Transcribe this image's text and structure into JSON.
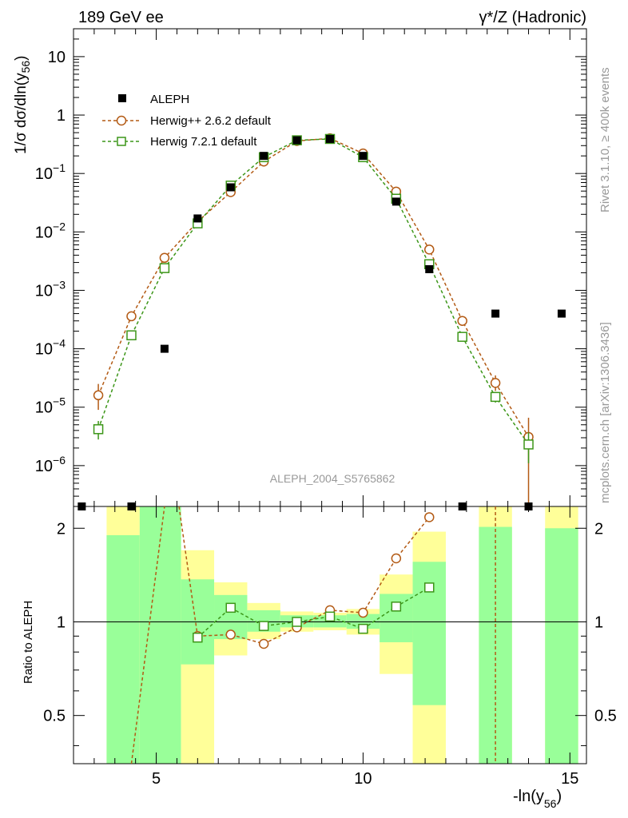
{
  "header": {
    "left_title": "189 GeV ee",
    "right_title": "γ*/Z (Hadronic)"
  },
  "side_labels": {
    "rivet": "Rivet 3.1.10, ≥ 400k events",
    "mcplots": "mcplots.cern.ch [arXiv:1306.3436]"
  },
  "watermark": "ALEPH_2004_S5765862",
  "colors": {
    "herwig262": "#b35a14",
    "herwig721": "#3c9618",
    "band_inner": "#99ff99",
    "band_outer": "#ffff99",
    "data": "#000000"
  },
  "chart_data": [
    {
      "type": "scatter",
      "panel": "main",
      "ylabel": "1/σ  dσ/dln(y56)",
      "yscale": "log",
      "ylim": [
        2e-07,
        30
      ],
      "xlim": [
        3,
        15.4
      ],
      "y_ticks": [
        "10",
        "1",
        "10^-1",
        "10^-2",
        "10^-3",
        "10^-4",
        "10^-5",
        "10^-6"
      ],
      "legend": [
        "ALEPH",
        "Herwig++ 2.6.2 default",
        "Herwig 7.2.1 default"
      ],
      "legend_position": "top-left",
      "series": [
        {
          "name": "ALEPH",
          "marker": "filled-square",
          "x": [
            3.2,
            4.4,
            5.2,
            6.0,
            6.8,
            7.6,
            8.4,
            9.2,
            10.0,
            10.8,
            11.6,
            12.4,
            13.2,
            14.0,
            14.8
          ],
          "y": [
            2e-07,
            2e-07,
            0.0001,
            0.017,
            0.058,
            0.2,
            0.37,
            0.39,
            0.2,
            0.033,
            0.0023,
            2e-07,
            0.0004,
            2e-07,
            0.0004
          ],
          "note_below_range": [
            true,
            true,
            false,
            false,
            false,
            false,
            false,
            false,
            false,
            false,
            false,
            true,
            false,
            true,
            false
          ]
        },
        {
          "name": "Herwig++ 2.6.2 default",
          "marker": "open-circle",
          "x": [
            3.6,
            4.4,
            5.2,
            6.0,
            6.8,
            7.6,
            8.4,
            9.2,
            10.0,
            10.8,
            11.6,
            12.4,
            13.2,
            14.0
          ],
          "y": [
            1.6e-05,
            0.00036,
            0.0036,
            0.015,
            0.048,
            0.16,
            0.36,
            0.4,
            0.22,
            0.049,
            0.005,
            0.0003,
            2.6e-05,
            3.1e-06
          ],
          "yerr_low": [
            7e-06,
            0,
            0,
            0,
            0,
            0,
            0,
            0,
            0,
            0,
            0,
            0,
            7e-06,
            2.9e-06
          ],
          "yerr_high": [
            9e-06,
            0,
            0,
            0,
            0,
            0,
            0,
            0,
            0,
            0,
            0,
            0,
            9e-06,
            3.5e-06
          ]
        },
        {
          "name": "Herwig 7.2.1 default",
          "marker": "open-square",
          "x": [
            3.6,
            4.4,
            5.2,
            6.0,
            6.8,
            7.6,
            8.4,
            9.2,
            10.0,
            10.8,
            11.6,
            12.4,
            13.2,
            14.0
          ],
          "y": [
            4.2e-06,
            0.00017,
            0.0024,
            0.014,
            0.062,
            0.19,
            0.37,
            0.39,
            0.19,
            0.037,
            0.0028,
            0.00016,
            1.5e-05,
            2.3e-06
          ],
          "yerr_low": [
            1.4e-06,
            0,
            0,
            0,
            0,
            0,
            0,
            0,
            0,
            0,
            0,
            0,
            3e-06,
            1.2e-06
          ],
          "yerr_high": [
            1.6e-06,
            0,
            0,
            0,
            0,
            0,
            0,
            0,
            0,
            0,
            0,
            0,
            3e-06,
            1.4e-06
          ]
        }
      ]
    },
    {
      "type": "line",
      "panel": "ratio",
      "ylabel": "Ratio to ALEPH",
      "xlabel": "-ln(y56)",
      "ylim": [
        0.35,
        2.35
      ],
      "x_ticks": [
        "5",
        "10",
        "15"
      ],
      "y_ticks": [
        "0.5",
        "1",
        "2"
      ],
      "bands": [
        {
          "x0": 3.8,
          "x1": 4.6,
          "inner": [
            0.35,
            1.9
          ],
          "outer": [
            0.35,
            2.35
          ]
        },
        {
          "x0": 4.6,
          "x1": 5.6,
          "inner": [
            0.35,
            2.35
          ],
          "outer": [
            0.35,
            2.35
          ]
        },
        {
          "x0": 5.6,
          "x1": 6.4,
          "inner": [
            0.73,
            1.37
          ],
          "outer": [
            0.35,
            1.7
          ]
        },
        {
          "x0": 6.4,
          "x1": 7.2,
          "inner": [
            0.88,
            1.22
          ],
          "outer": [
            0.78,
            1.34
          ]
        },
        {
          "x0": 7.2,
          "x1": 8.0,
          "inner": [
            0.93,
            1.09
          ],
          "outer": [
            0.88,
            1.15
          ]
        },
        {
          "x0": 8.0,
          "x1": 8.8,
          "inner": [
            0.96,
            1.05
          ],
          "outer": [
            0.93,
            1.08
          ]
        },
        {
          "x0": 8.8,
          "x1": 9.6,
          "inner": [
            0.96,
            1.05
          ],
          "outer": [
            0.94,
            1.07
          ]
        },
        {
          "x0": 9.6,
          "x1": 10.4,
          "inner": [
            0.95,
            1.06
          ],
          "outer": [
            0.91,
            1.1
          ]
        },
        {
          "x0": 10.4,
          "x1": 11.2,
          "inner": [
            0.86,
            1.23
          ],
          "outer": [
            0.68,
            1.42
          ]
        },
        {
          "x0": 11.2,
          "x1": 12.0,
          "inner": [
            0.54,
            1.56
          ],
          "outer": [
            0.35,
            1.95
          ]
        },
        {
          "x0": 12.8,
          "x1": 13.6,
          "inner": [
            0.35,
            2.02
          ],
          "outer": [
            0.35,
            2.35
          ]
        },
        {
          "x0": 14.4,
          "x1": 15.2,
          "inner": [
            0.35,
            2.0
          ],
          "outer": [
            0.35,
            2.35
          ]
        }
      ],
      "series": [
        {
          "name": "Herwig++ 2.6.2 default",
          "x": [
            6.0,
            6.8,
            7.6,
            8.4,
            9.2,
            10.0,
            10.8,
            11.6
          ],
          "y": [
            0.9,
            0.91,
            0.85,
            0.96,
            1.09,
            1.07,
            1.6,
            2.17
          ],
          "extends_off_scale": "steep rise between x=4.4 and x=6.0 (off top of panel), vertical line at x=13.2"
        },
        {
          "name": "Herwig 7.2.1 default",
          "x": [
            6.0,
            6.8,
            7.6,
            8.4,
            9.2,
            10.0,
            10.8,
            11.6
          ],
          "y": [
            0.89,
            1.11,
            0.97,
            1.0,
            1.04,
            0.95,
            1.12,
            1.29
          ]
        }
      ]
    }
  ]
}
